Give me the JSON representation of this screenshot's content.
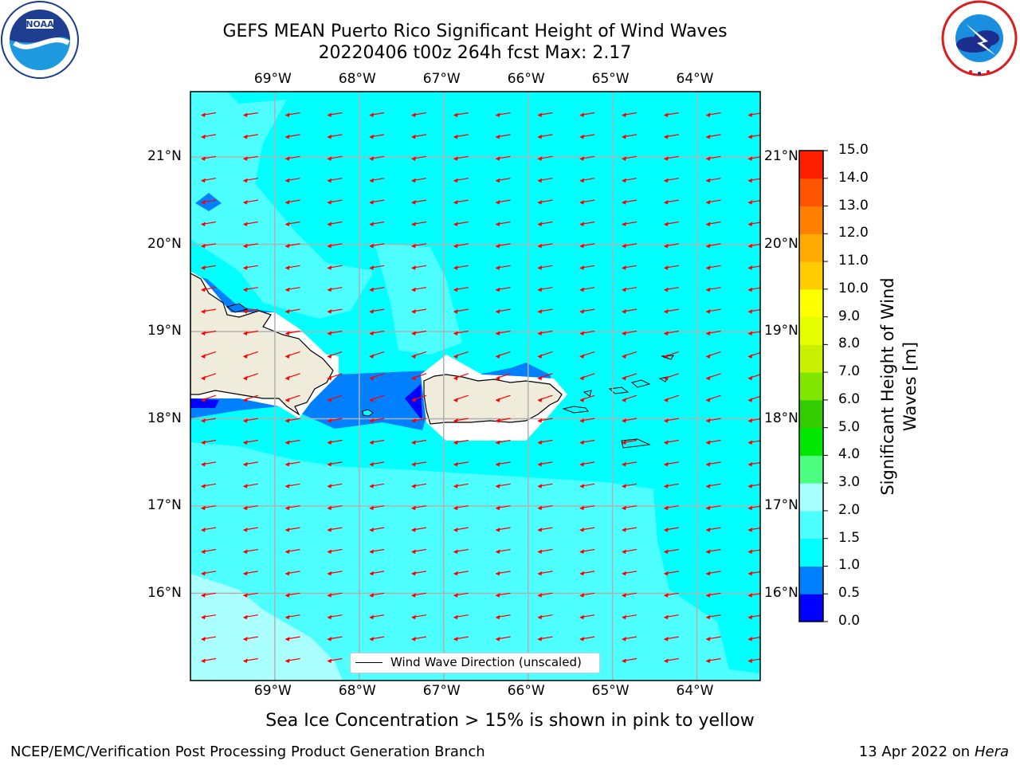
{
  "title": {
    "line1": "GEFS MEAN Puerto Rico Significant Height of Wind Waves",
    "line2": "20220406 t00z 264h fcst   Max: 2.17"
  },
  "map": {
    "lon_range": [
      -70.0,
      -63.25
    ],
    "lat_range": [
      15.0,
      21.75
    ],
    "lon_ticks": [
      {
        "value": -69,
        "label": "69°W"
      },
      {
        "value": -68,
        "label": "68°W"
      },
      {
        "value": -67,
        "label": "67°W"
      },
      {
        "value": -66,
        "label": "66°W"
      },
      {
        "value": -65,
        "label": "65°W"
      },
      {
        "value": -64,
        "label": "64°W"
      }
    ],
    "lat_ticks": [
      {
        "value": 21,
        "label": "21°N"
      },
      {
        "value": 20,
        "label": "20°N"
      },
      {
        "value": 19,
        "label": "19°N"
      },
      {
        "value": 18,
        "label": "18°N"
      },
      {
        "value": 17,
        "label": "17°N"
      },
      {
        "value": 16,
        "label": "16°N"
      }
    ],
    "grid": true,
    "arrow_color": "#ff0000",
    "land_color": "#efecdc",
    "ocean_color_default": "#00ffff"
  },
  "colorbar": {
    "label": "Significant Height of Wind Waves [m]",
    "ticks": [
      "0.0",
      "0.5",
      "1.0",
      "1.5",
      "2.0",
      "3.0",
      "4.0",
      "5.0",
      "6.0",
      "7.0",
      "8.0",
      "9.0",
      "10.0",
      "11.0",
      "12.0",
      "13.0",
      "14.0",
      "15.0"
    ],
    "colors": [
      "#0000ff",
      "#0080ff",
      "#00ffff",
      "#4dffff",
      "#aaffff",
      "#4dff80",
      "#00e600",
      "#33cc00",
      "#80e600",
      "#c8f000",
      "#e6ff00",
      "#ffff00",
      "#ffcc00",
      "#ffaa00",
      "#ff8000",
      "#ff5500",
      "#ff2000"
    ]
  },
  "legend": {
    "label": "Wind Wave Direction (unscaled)"
  },
  "ice_note": "Sea Ice Concentration > 15% is shown in pink to yellow",
  "footer": {
    "left": "NCEP/EMC/Verification Post Processing Product Generation Branch",
    "right_prefix": "13 Apr 2022 on ",
    "right_host": "Hera"
  }
}
